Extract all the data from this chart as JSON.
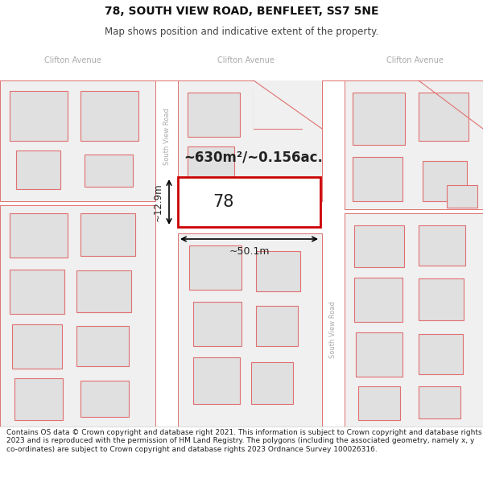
{
  "title_line1": "78, SOUTH VIEW ROAD, BENFLEET, SS7 5NE",
  "title_line2": "Map shows position and indicative extent of the property.",
  "footer_text": "Contains OS data © Crown copyright and database right 2021. This information is subject to Crown copyright and database rights 2023 and is reproduced with the permission of HM Land Registry. The polygons (including the associated geometry, namely x, y co-ordinates) are subject to Crown copyright and database rights 2023 Ordnance Survey 100026316.",
  "map_bg": "#f2f2f2",
  "title_bg": "#ffffff",
  "footer_bg": "#ffffff",
  "road_color": "#ffffff",
  "building_fill": "#e0e0e0",
  "building_edge_color": "#e07070",
  "highlight_fill": "#ffffff",
  "highlight_edge": "#cc0000",
  "road_label_color": "#aaaaaa",
  "top_road_label": "Clifton Avenue",
  "property_label": "78",
  "area_label": "~630m²/~0.156ac.",
  "dim_width_label": "~50.1m",
  "dim_height_label": "~12.9m",
  "title_fontsize": 10,
  "subtitle_fontsize": 8.5,
  "footer_fontsize": 6.5
}
